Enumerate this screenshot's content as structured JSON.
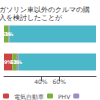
{
  "chart_data": {
    "type": "bar",
    "orientation": "horizontal",
    "stacked": true,
    "title": "ガソリン車以外のクルマの購入を検討したことが",
    "categories": [
      null,
      null
    ],
    "series": [
      {
        "name": "電気自動車",
        "color": "#cc4444",
        "values": [
          null,
          9
        ],
        "value_labels": [
          null,
          "9%"
        ]
      },
      {
        "name": "PHV",
        "color": "#7ab03c",
        "values": [
          5,
          5
        ],
        "value_labels": [
          "5%",
          "5%"
        ]
      },
      {
        "name": " ",
        "color": "#9b8ec0",
        "values": [
          1,
          2
        ],
        "value_labels": [
          "1%",
          "2%"
        ]
      },
      {
        "color": "#4ab8c8",
        "values": [
          94,
          84
        ]
      }
    ],
    "xlim": [
      0,
      100
    ],
    "xticks": [
      {
        "value": 40,
        "label": "40%"
      },
      {
        "value": 60,
        "label": "60%"
      }
    ],
    "grid": false,
    "legend": "lower left",
    "data_labels": true,
    "tick_labels": "x"
  }
}
